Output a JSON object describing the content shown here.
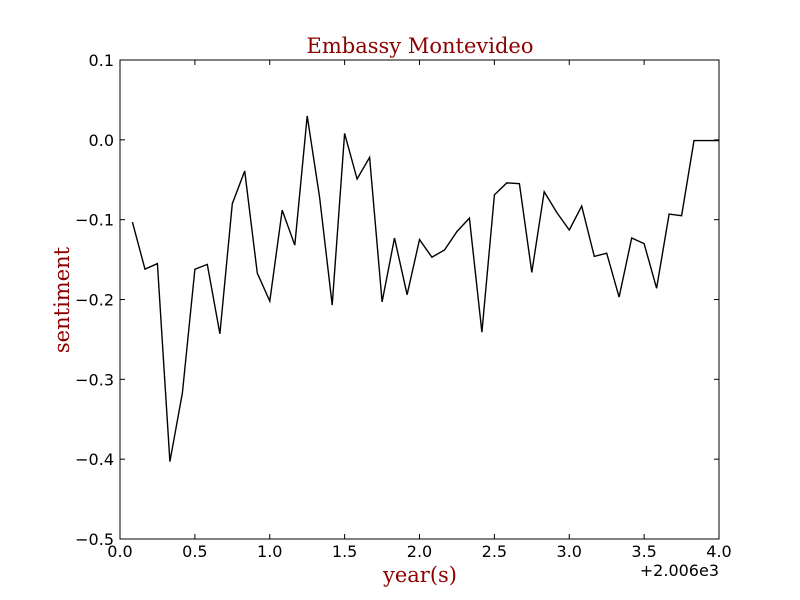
{
  "chart_data": {
    "type": "line",
    "title": "Embassy Montevideo",
    "xlabel": "year(s)",
    "ylabel": "sentiment",
    "x_offset_label": "+2.006e3",
    "xlim": [
      0.0,
      4.0
    ],
    "ylim": [
      -0.5,
      0.1
    ],
    "x_ticks": [
      "0.0",
      "0.5",
      "1.0",
      "1.5",
      "2.0",
      "2.5",
      "3.0",
      "3.5",
      "4.0"
    ],
    "y_ticks": [
      "−0.5",
      "−0.4",
      "−0.3",
      "−0.2",
      "−0.1",
      "0.0",
      "0.1"
    ],
    "grid": false,
    "series": [
      {
        "color": "#000000",
        "x": [
          0.083,
          0.167,
          0.25,
          0.333,
          0.417,
          0.5,
          0.583,
          0.667,
          0.75,
          0.833,
          0.917,
          1.0,
          1.083,
          1.167,
          1.25,
          1.333,
          1.417,
          1.5,
          1.583,
          1.667,
          1.75,
          1.833,
          1.917,
          2.0,
          2.083,
          2.167,
          2.25,
          2.333,
          2.417,
          2.5,
          2.583,
          2.667,
          2.75,
          2.833,
          2.917,
          3.0,
          3.083,
          3.167,
          3.25,
          3.333,
          3.417,
          3.5,
          3.583,
          3.667,
          3.75,
          3.833,
          3.917,
          4.0
        ],
        "y": [
          -0.103,
          -0.162,
          -0.155,
          -0.403,
          -0.317,
          -0.162,
          -0.156,
          -0.243,
          -0.08,
          -0.039,
          -0.167,
          -0.202,
          -0.088,
          -0.132,
          0.03,
          -0.072,
          -0.207,
          0.008,
          -0.049,
          -0.022,
          -0.203,
          -0.123,
          -0.194,
          -0.125,
          -0.147,
          -0.138,
          -0.115,
          -0.098,
          -0.241,
          -0.069,
          -0.054,
          -0.055,
          -0.166,
          -0.065,
          -0.091,
          -0.113,
          -0.083,
          -0.146,
          -0.142,
          -0.197,
          -0.123,
          -0.13,
          -0.186,
          -0.093,
          -0.095,
          -0.001,
          -0.001,
          -0.001
        ]
      }
    ]
  }
}
